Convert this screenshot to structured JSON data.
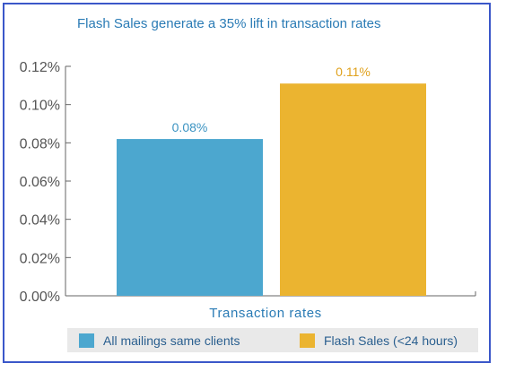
{
  "chart_data": {
    "type": "bar",
    "title": "Flash Sales generate a 35% lift in transaction rates",
    "xlabel": "Transaction rates",
    "ylabel": "",
    "ylim": [
      0,
      0.12
    ],
    "yticks": [
      0.0,
      0.02,
      0.04,
      0.06,
      0.08,
      0.1,
      0.12
    ],
    "ytick_labels": [
      "0.00%",
      "0.02%",
      "0.04%",
      "0.06%",
      "0.08%",
      "0.10%",
      "0.12%"
    ],
    "grid": false,
    "legend_position": "bottom",
    "series": [
      {
        "name": "All mailings same clients",
        "values": [
          0.082
        ],
        "data_label": "0.08%",
        "color": "#4ca7cf",
        "label_color": "#3b93c2"
      },
      {
        "name": "Flash Sales (<24 hours)",
        "values": [
          0.111
        ],
        "data_label": "0.11%",
        "color": "#ebb430",
        "label_color": "#e0a21e"
      }
    ]
  }
}
